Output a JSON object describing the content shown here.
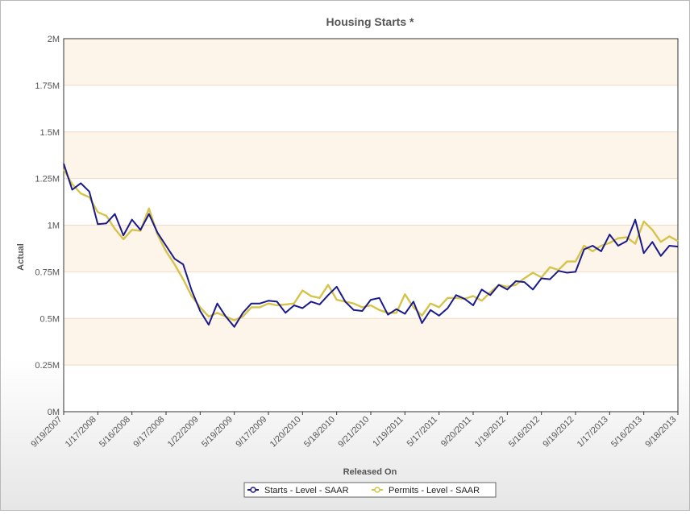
{
  "chart_data": {
    "type": "line",
    "title": "Housing Starts *",
    "xlabel": "Released On",
    "ylabel": "Actual",
    "ylim": [
      0,
      2000000
    ],
    "y_ticks": [
      {
        "value": 0,
        "label": "0M"
      },
      {
        "value": 250000,
        "label": "0.25M"
      },
      {
        "value": 500000,
        "label": "0.5M"
      },
      {
        "value": 750000,
        "label": "0.75M"
      },
      {
        "value": 1000000,
        "label": "1M"
      },
      {
        "value": 1250000,
        "label": "1.25M"
      },
      {
        "value": 1500000,
        "label": "1.5M"
      },
      {
        "value": 1750000,
        "label": "1.75M"
      },
      {
        "value": 2000000,
        "label": "2M"
      }
    ],
    "x_tick_labels": [
      "9/19/2007",
      "1/17/2008",
      "5/16/2008",
      "9/17/2008",
      "1/22/2009",
      "5/19/2009",
      "9/17/2009",
      "1/20/2010",
      "5/18/2010",
      "9/21/2010",
      "1/19/2011",
      "5/17/2011",
      "9/20/2011",
      "1/19/2012",
      "5/16/2012",
      "9/19/2012",
      "1/17/2013",
      "5/16/2013",
      "9/18/2013"
    ],
    "grid": true,
    "alternating_bands": true,
    "legend_position": "bottom-center",
    "series": [
      {
        "name": "Starts - Level - SAAR",
        "color": "#1a1a8c",
        "marker": "circle",
        "values": [
          1330000,
          1190000,
          1225000,
          1180000,
          1005000,
          1010000,
          1060000,
          945000,
          1030000,
          975000,
          1060000,
          960000,
          890000,
          820000,
          790000,
          650000,
          540000,
          466000,
          580000,
          510000,
          455000,
          530000,
          580000,
          580000,
          595000,
          590000,
          530000,
          570000,
          555000,
          590000,
          575000,
          625000,
          670000,
          590000,
          545000,
          540000,
          600000,
          610000,
          520000,
          550000,
          525000,
          590000,
          475000,
          545000,
          515000,
          555000,
          625000,
          605000,
          570000,
          655000,
          625000,
          680000,
          655000,
          700000,
          695000,
          655000,
          715000,
          710000,
          755000,
          745000,
          750000,
          870000,
          890000,
          860000,
          950000,
          890000,
          915000,
          1030000,
          850000,
          910000,
          835000,
          890000,
          885000
        ]
      },
      {
        "name": "Permits - Level - SAAR",
        "color": "#d6c34a",
        "marker": "circle",
        "values": [
          1300000,
          1220000,
          1170000,
          1150000,
          1070000,
          1050000,
          980000,
          925000,
          975000,
          970000,
          1090000,
          950000,
          860000,
          790000,
          710000,
          620000,
          560000,
          510000,
          530000,
          510000,
          490000,
          510000,
          560000,
          560000,
          580000,
          570000,
          575000,
          580000,
          650000,
          620000,
          610000,
          680000,
          600000,
          590000,
          580000,
          560000,
          570000,
          545000,
          530000,
          530000,
          630000,
          560000,
          515000,
          580000,
          560000,
          610000,
          610000,
          605000,
          620000,
          595000,
          640000,
          680000,
          670000,
          680000,
          715000,
          745000,
          720000,
          775000,
          760000,
          805000,
          805000,
          890000,
          860000,
          890000,
          905000,
          930000,
          935000,
          900000,
          1020000,
          975000,
          910000,
          940000,
          915000
        ]
      }
    ]
  }
}
